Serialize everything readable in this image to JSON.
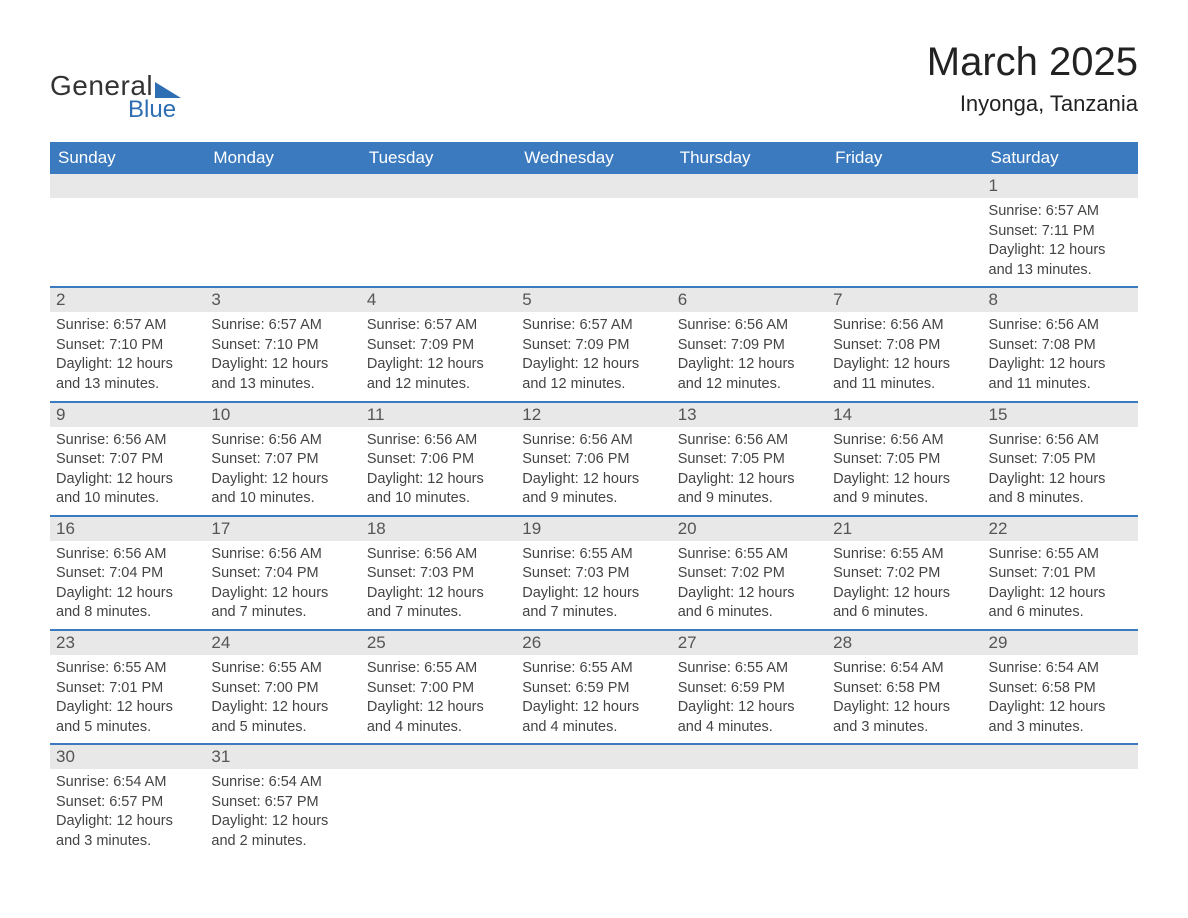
{
  "logo": {
    "text1": "General",
    "text2": "Blue",
    "accent_color": "#2e6fb4"
  },
  "title": "March 2025",
  "subtitle": "Inyonga, Tanzania",
  "colors": {
    "header_bg": "#3b7abf",
    "header_text": "#ffffff",
    "daynum_bg": "#e8e8e8",
    "daynum_text": "#555555",
    "body_text": "#444444",
    "row_border": "#3b7abf",
    "page_bg": "#ffffff"
  },
  "font": {
    "family": "Arial",
    "title_size": 40,
    "subtitle_size": 22,
    "weekday_size": 17,
    "daynum_size": 17,
    "body_size": 14.5
  },
  "weekdays": [
    "Sunday",
    "Monday",
    "Tuesday",
    "Wednesday",
    "Thursday",
    "Friday",
    "Saturday"
  ],
  "first_weekday_index": 6,
  "num_days": 31,
  "days": {
    "1": {
      "sunrise": "6:57 AM",
      "sunset": "7:11 PM",
      "daylight": "12 hours and 13 minutes."
    },
    "2": {
      "sunrise": "6:57 AM",
      "sunset": "7:10 PM",
      "daylight": "12 hours and 13 minutes."
    },
    "3": {
      "sunrise": "6:57 AM",
      "sunset": "7:10 PM",
      "daylight": "12 hours and 13 minutes."
    },
    "4": {
      "sunrise": "6:57 AM",
      "sunset": "7:09 PM",
      "daylight": "12 hours and 12 minutes."
    },
    "5": {
      "sunrise": "6:57 AM",
      "sunset": "7:09 PM",
      "daylight": "12 hours and 12 minutes."
    },
    "6": {
      "sunrise": "6:56 AM",
      "sunset": "7:09 PM",
      "daylight": "12 hours and 12 minutes."
    },
    "7": {
      "sunrise": "6:56 AM",
      "sunset": "7:08 PM",
      "daylight": "12 hours and 11 minutes."
    },
    "8": {
      "sunrise": "6:56 AM",
      "sunset": "7:08 PM",
      "daylight": "12 hours and 11 minutes."
    },
    "9": {
      "sunrise": "6:56 AM",
      "sunset": "7:07 PM",
      "daylight": "12 hours and 10 minutes."
    },
    "10": {
      "sunrise": "6:56 AM",
      "sunset": "7:07 PM",
      "daylight": "12 hours and 10 minutes."
    },
    "11": {
      "sunrise": "6:56 AM",
      "sunset": "7:06 PM",
      "daylight": "12 hours and 10 minutes."
    },
    "12": {
      "sunrise": "6:56 AM",
      "sunset": "7:06 PM",
      "daylight": "12 hours and 9 minutes."
    },
    "13": {
      "sunrise": "6:56 AM",
      "sunset": "7:05 PM",
      "daylight": "12 hours and 9 minutes."
    },
    "14": {
      "sunrise": "6:56 AM",
      "sunset": "7:05 PM",
      "daylight": "12 hours and 9 minutes."
    },
    "15": {
      "sunrise": "6:56 AM",
      "sunset": "7:05 PM",
      "daylight": "12 hours and 8 minutes."
    },
    "16": {
      "sunrise": "6:56 AM",
      "sunset": "7:04 PM",
      "daylight": "12 hours and 8 minutes."
    },
    "17": {
      "sunrise": "6:56 AM",
      "sunset": "7:04 PM",
      "daylight": "12 hours and 7 minutes."
    },
    "18": {
      "sunrise": "6:56 AM",
      "sunset": "7:03 PM",
      "daylight": "12 hours and 7 minutes."
    },
    "19": {
      "sunrise": "6:55 AM",
      "sunset": "7:03 PM",
      "daylight": "12 hours and 7 minutes."
    },
    "20": {
      "sunrise": "6:55 AM",
      "sunset": "7:02 PM",
      "daylight": "12 hours and 6 minutes."
    },
    "21": {
      "sunrise": "6:55 AM",
      "sunset": "7:02 PM",
      "daylight": "12 hours and 6 minutes."
    },
    "22": {
      "sunrise": "6:55 AM",
      "sunset": "7:01 PM",
      "daylight": "12 hours and 6 minutes."
    },
    "23": {
      "sunrise": "6:55 AM",
      "sunset": "7:01 PM",
      "daylight": "12 hours and 5 minutes."
    },
    "24": {
      "sunrise": "6:55 AM",
      "sunset": "7:00 PM",
      "daylight": "12 hours and 5 minutes."
    },
    "25": {
      "sunrise": "6:55 AM",
      "sunset": "7:00 PM",
      "daylight": "12 hours and 4 minutes."
    },
    "26": {
      "sunrise": "6:55 AM",
      "sunset": "6:59 PM",
      "daylight": "12 hours and 4 minutes."
    },
    "27": {
      "sunrise": "6:55 AM",
      "sunset": "6:59 PM",
      "daylight": "12 hours and 4 minutes."
    },
    "28": {
      "sunrise": "6:54 AM",
      "sunset": "6:58 PM",
      "daylight": "12 hours and 3 minutes."
    },
    "29": {
      "sunrise": "6:54 AM",
      "sunset": "6:58 PM",
      "daylight": "12 hours and 3 minutes."
    },
    "30": {
      "sunrise": "6:54 AM",
      "sunset": "6:57 PM",
      "daylight": "12 hours and 3 minutes."
    },
    "31": {
      "sunrise": "6:54 AM",
      "sunset": "6:57 PM",
      "daylight": "12 hours and 2 minutes."
    }
  },
  "labels": {
    "sunrise": "Sunrise:",
    "sunset": "Sunset:",
    "daylight": "Daylight:"
  }
}
